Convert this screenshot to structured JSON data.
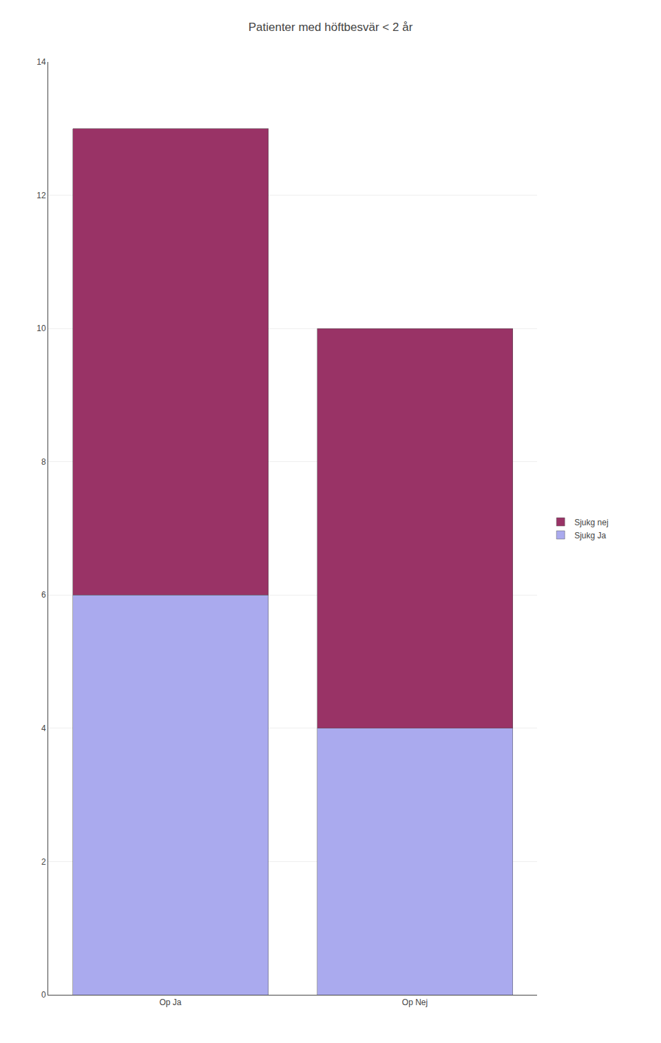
{
  "chart_data": {
    "type": "bar",
    "title": "Patienter med höftbesvär < 2 år",
    "categories": [
      "Op Ja",
      "Op Nej"
    ],
    "series": [
      {
        "name": "Sjukg Ja",
        "color": "#AAAAEE",
        "values": [
          6,
          4
        ]
      },
      {
        "name": "Sjukg nej",
        "color": "#993366",
        "values": [
          7,
          6
        ]
      }
    ],
    "stacked": true,
    "ylim": [
      0,
      14
    ],
    "yticks": [
      0,
      2,
      4,
      6,
      8,
      10,
      12,
      14
    ],
    "grid": true,
    "legend": "right"
  }
}
